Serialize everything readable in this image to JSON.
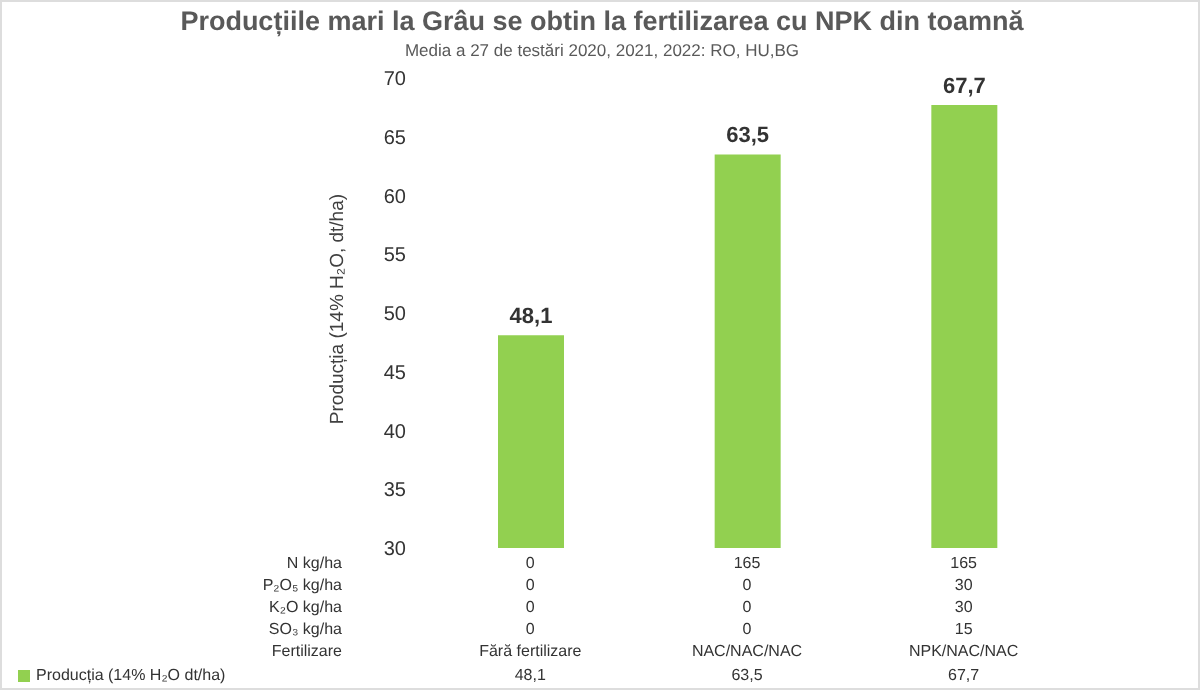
{
  "chart_data": {
    "type": "bar",
    "title": "Producțiile mari la Grâu se obtin la fertilizarea cu NPK din toamnă",
    "subtitle": "Media a 27 de testări 2020, 2021, 2022: RO, HU,BG",
    "ylabel": "Producția (14% H₂O, dt/ha)",
    "categories": [
      "Fără fertilizare",
      "NAC/NAC/NAC",
      "NPK/NAC/NAC"
    ],
    "series": [
      {
        "name": "Producția (14% H₂O dt/ha)",
        "color": "#92d050",
        "values": [
          48.1,
          63.5,
          67.7
        ]
      }
    ],
    "value_labels": [
      "48,1",
      "63,5",
      "67,7"
    ],
    "ylim": [
      30,
      70
    ],
    "yticks": [
      30,
      35,
      40,
      45,
      50,
      55,
      60,
      65,
      70
    ],
    "grid": false,
    "legend": "bottom left",
    "annotations": [
      "N kg/ha",
      "0",
      "165",
      "165",
      "P₂O₅ kg/ha",
      "0",
      "0",
      "30",
      "K₂O kg/ha",
      "0",
      "0",
      "30",
      "SO₃ kg/ha",
      "0",
      "0",
      "15",
      "Fertilizare"
    ]
  }
}
